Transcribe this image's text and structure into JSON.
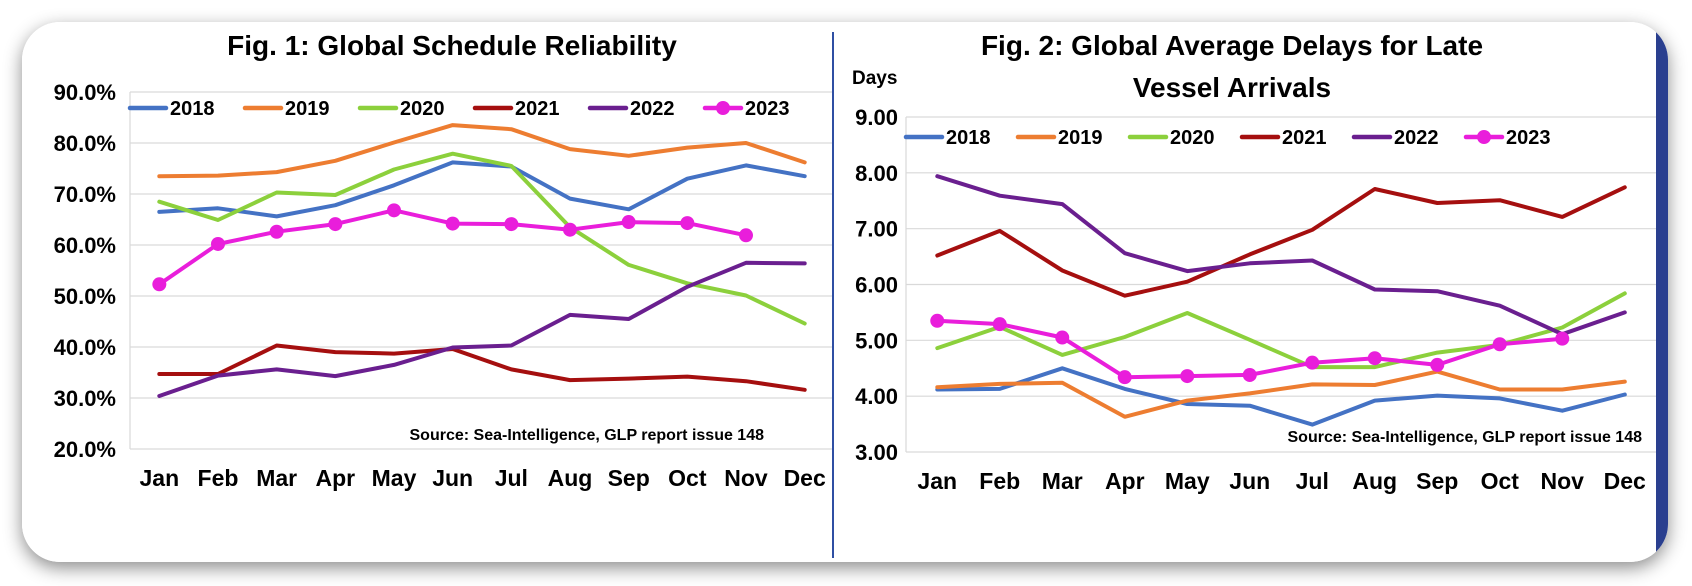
{
  "chart_data": [
    {
      "type": "line",
      "title": "Fig. 1: Global Schedule Reliability",
      "ylabel": "",
      "categories": [
        "Jan",
        "Feb",
        "Mar",
        "Apr",
        "May",
        "Jun",
        "Jul",
        "Aug",
        "Sep",
        "Oct",
        "Nov",
        "Dec"
      ],
      "ylim": [
        20,
        90
      ],
      "yticks": [
        "20.0%",
        "30.0%",
        "40.0%",
        "50.0%",
        "60.0%",
        "70.0%",
        "80.0%",
        "90.0%"
      ],
      "ytick_values": [
        20,
        30,
        40,
        50,
        60,
        70,
        80,
        90
      ],
      "grid": true,
      "legend": "top",
      "source": "Source: Sea-Intelligence, GLP report issue 148",
      "series": [
        {
          "name": "2018",
          "color": "#4472C4",
          "marker": false,
          "values": [
            66.5,
            67.2,
            65.6,
            67.8,
            71.7,
            76.2,
            75.4,
            69.1,
            67.0,
            73.0,
            75.6,
            73.5
          ]
        },
        {
          "name": "2019",
          "color": "#ED7D31",
          "marker": false,
          "values": [
            73.5,
            73.6,
            74.3,
            76.5,
            80.1,
            83.5,
            82.7,
            78.8,
            77.5,
            79.1,
            80.0,
            76.2
          ]
        },
        {
          "name": "2020",
          "color": "#8CD03C",
          "marker": false,
          "values": [
            68.5,
            64.9,
            70.3,
            69.8,
            74.8,
            77.9,
            75.5,
            63.5,
            56.1,
            52.5,
            50.1,
            44.6
          ]
        },
        {
          "name": "2021",
          "color": "#A50F0F",
          "marker": false,
          "values": [
            34.7,
            34.7,
            40.3,
            39.0,
            38.7,
            39.6,
            35.6,
            33.5,
            33.8,
            34.2,
            33.3,
            31.6
          ]
        },
        {
          "name": "2022",
          "color": "#6A1F8F",
          "marker": false,
          "values": [
            30.4,
            34.4,
            35.6,
            34.3,
            36.5,
            39.9,
            40.3,
            46.3,
            45.5,
            51.8,
            56.5,
            56.4
          ]
        },
        {
          "name": "2023",
          "color": "#E91EDB",
          "marker": true,
          "values": [
            52.3,
            60.2,
            62.6,
            64.1,
            66.8,
            64.2,
            64.1,
            63.0,
            64.5,
            64.3,
            61.9,
            null
          ]
        }
      ]
    },
    {
      "type": "line",
      "title": "Fig. 2: Global Average Delays for Late Vessel Arrivals",
      "title_lines": [
        "Fig. 2: Global Average Delays for Late",
        "Vessel Arrivals"
      ],
      "ylabel": "Days",
      "categories": [
        "Jan",
        "Feb",
        "Mar",
        "Apr",
        "May",
        "Jun",
        "Jul",
        "Aug",
        "Sep",
        "Oct",
        "Nov",
        "Dec"
      ],
      "ylim": [
        3,
        9
      ],
      "yticks": [
        "3.00",
        "4.00",
        "5.00",
        "6.00",
        "7.00",
        "8.00",
        "9.00"
      ],
      "ytick_values": [
        3,
        4,
        5,
        6,
        7,
        8,
        9
      ],
      "grid": true,
      "legend": "top",
      "source": "Source: Sea-Intelligence, GLP report issue 148",
      "series": [
        {
          "name": "2018",
          "color": "#4472C4",
          "marker": false,
          "values": [
            4.12,
            4.13,
            4.5,
            4.13,
            3.86,
            3.83,
            3.49,
            3.92,
            4.01,
            3.96,
            3.74,
            4.03
          ]
        },
        {
          "name": "2019",
          "color": "#ED7D31",
          "marker": false,
          "values": [
            4.16,
            4.22,
            4.24,
            3.63,
            3.92,
            4.05,
            4.21,
            4.2,
            4.44,
            4.12,
            4.12,
            4.26
          ]
        },
        {
          "name": "2020",
          "color": "#8CD03C",
          "marker": false,
          "values": [
            4.86,
            5.24,
            4.74,
            5.06,
            5.49,
            5.01,
            4.52,
            4.52,
            4.78,
            4.92,
            5.23,
            5.84
          ]
        },
        {
          "name": "2021",
          "color": "#A50F0F",
          "marker": false,
          "values": [
            6.52,
            6.96,
            6.25,
            5.8,
            6.05,
            6.54,
            6.98,
            7.71,
            7.46,
            7.51,
            7.21,
            7.74
          ]
        },
        {
          "name": "2022",
          "color": "#6A1F8F",
          "marker": false,
          "values": [
            7.94,
            7.59,
            7.44,
            6.56,
            6.24,
            6.38,
            6.43,
            5.91,
            5.88,
            5.62,
            5.11,
            5.5
          ]
        },
        {
          "name": "2023",
          "color": "#E91EDB",
          "marker": true,
          "values": [
            5.35,
            5.29,
            5.05,
            4.34,
            4.36,
            4.38,
            4.6,
            4.68,
            4.56,
            4.93,
            5.03,
            null
          ]
        }
      ]
    }
  ]
}
